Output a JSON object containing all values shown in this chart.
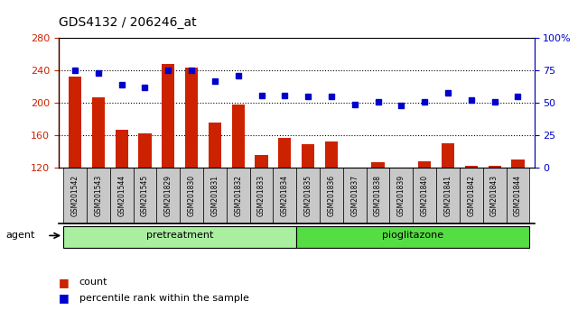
{
  "title": "GDS4132 / 206246_at",
  "samples": [
    "GSM201542",
    "GSM201543",
    "GSM201544",
    "GSM201545",
    "GSM201829",
    "GSM201830",
    "GSM201831",
    "GSM201832",
    "GSM201833",
    "GSM201834",
    "GSM201835",
    "GSM201836",
    "GSM201837",
    "GSM201838",
    "GSM201839",
    "GSM201840",
    "GSM201841",
    "GSM201842",
    "GSM201843",
    "GSM201844"
  ],
  "counts": [
    233,
    207,
    167,
    163,
    248,
    244,
    176,
    198,
    136,
    157,
    149,
    153,
    120,
    127,
    120,
    128,
    150,
    122,
    123,
    130
  ],
  "percentiles": [
    75,
    73,
    64,
    62,
    75,
    75,
    67,
    71,
    56,
    56,
    55,
    55,
    49,
    51,
    48,
    51,
    58,
    52,
    51,
    55
  ],
  "pretreatment_count": 10,
  "pioglitazone_count": 10,
  "ylim_left": [
    120,
    280
  ],
  "ylim_right": [
    0,
    100
  ],
  "yticks_left": [
    120,
    160,
    200,
    240,
    280
  ],
  "yticks_right": [
    0,
    25,
    50,
    75,
    100
  ],
  "yticklabels_right": [
    "0",
    "25",
    "50",
    "75",
    "100%"
  ],
  "bar_color": "#cc2200",
  "dot_color": "#0000cc",
  "pretreatment_color": "#aaeea0",
  "pioglitazone_color": "#55dd44",
  "xlabel_bg_color": "#c8c8c8",
  "agent_label": "agent",
  "legend_bar_label": "count",
  "legend_dot_label": "percentile rank within the sample",
  "grid_hlines": [
    160,
    200,
    240
  ],
  "bar_bottom": 120
}
